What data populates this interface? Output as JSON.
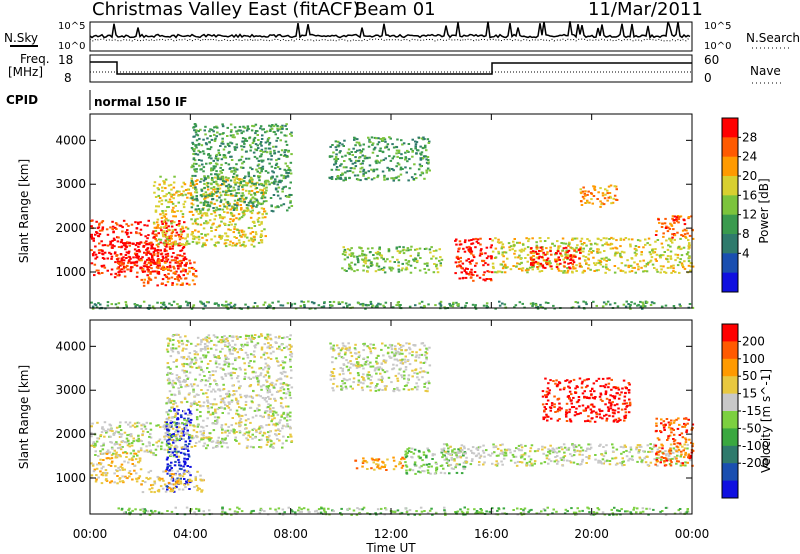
{
  "header": {
    "title": "Christmas Valley East (fitACF)",
    "beam": "Beam 01",
    "date": "11/Mar/2011"
  },
  "aux": {
    "nsky_label": "N.Sky",
    "nsearch_label": "N.Search",
    "scale_top": "10^5",
    "scale_bottom": "10^0",
    "freq_label_1": "Freq.",
    "freq_label_2": "[MHz]",
    "freq_ticks": [
      "18",
      "8"
    ],
    "nave_label": "Nave",
    "nave_ticks": [
      "60",
      "0"
    ],
    "cpid_label": "CPID",
    "cpid_value": "normal 150 IF"
  },
  "colors": {
    "power": [
      "#1010e0",
      "#1a4fb0",
      "#2f7a6c",
      "#3a9a4e",
      "#7cc43c",
      "#d8d030",
      "#ff9a00",
      "#ff5a00",
      "#ff0000"
    ],
    "velocity": [
      "#1010e0",
      "#1a4fb0",
      "#2f7a6c",
      "#3aa840",
      "#7cd040",
      "#c8c8c8",
      "#e8c840",
      "#ff9a00",
      "#ff5a00",
      "#ff0000"
    ],
    "accent_black": "#000000"
  },
  "chart_data": [
    {
      "type": "heatmap",
      "panel": "power",
      "title": "Christmas Valley East (fitACF)",
      "xlabel": "Time UT",
      "ylabel": "Slant Range [km]",
      "colorbar_label": "Power [dB]",
      "colorbar_ticks": [
        "28",
        "24",
        "20",
        "16",
        "12",
        "8",
        "4"
      ],
      "x_ticks": [
        "00:00",
        "04:00",
        "08:00",
        "12:00",
        "16:00",
        "20:00",
        "00:00"
      ],
      "y_ticks": [
        "1000",
        "2000",
        "3000",
        "4000"
      ],
      "ylim": [
        180,
        4600
      ],
      "xlim_hours": [
        0,
        24
      ],
      "regions": [
        {
          "t0": 0.0,
          "t1": 3.8,
          "r0": 900,
          "r1": 2200,
          "level": 9
        },
        {
          "t0": 1.0,
          "t1": 3.0,
          "r0": 1100,
          "r1": 1700,
          "level": 9
        },
        {
          "t0": 2.0,
          "t1": 4.2,
          "r0": 700,
          "r1": 1300,
          "level": 8
        },
        {
          "t0": 2.5,
          "t1": 7.0,
          "r0": 1600,
          "r1": 3200,
          "level": 6
        },
        {
          "t0": 4.0,
          "t1": 8.0,
          "r0": 2400,
          "r1": 4400,
          "level": 4
        },
        {
          "t0": 9.5,
          "t1": 13.5,
          "r0": 3100,
          "r1": 4100,
          "level": 4
        },
        {
          "t0": 10.0,
          "t1": 14.0,
          "r0": 1000,
          "r1": 1600,
          "level": 5
        },
        {
          "t0": 14.5,
          "t1": 16.0,
          "r0": 800,
          "r1": 1800,
          "level": 9
        },
        {
          "t0": 16.0,
          "t1": 24.0,
          "r0": 1000,
          "r1": 1800,
          "level": 6
        },
        {
          "t0": 17.5,
          "t1": 19.5,
          "r0": 1100,
          "r1": 1600,
          "level": 9
        },
        {
          "t0": 19.5,
          "t1": 21.0,
          "r0": 2500,
          "r1": 3000,
          "level": 7
        },
        {
          "t0": 22.5,
          "t1": 24.0,
          "r0": 1800,
          "r1": 2300,
          "level": 8
        },
        {
          "t0": 0.0,
          "t1": 24.0,
          "r0": 180,
          "r1": 350,
          "level": 4
        }
      ]
    },
    {
      "type": "heatmap",
      "panel": "velocity",
      "xlabel": "Time UT",
      "ylabel": "Slant Range [km]",
      "colorbar_label": "Velocity [m s^-1]",
      "colorbar_ticks": [
        "200",
        "100",
        "50",
        "15",
        "-15",
        "-50",
        "-100",
        "-200"
      ],
      "x_ticks": [
        "00:00",
        "04:00",
        "08:00",
        "12:00",
        "16:00",
        "20:00",
        "00:00"
      ],
      "y_ticks": [
        "1000",
        "2000",
        "3000",
        "4000"
      ],
      "ylim": [
        180,
        4600
      ],
      "xlim_hours": [
        0,
        24
      ],
      "regions": [
        {
          "t0": 0.0,
          "t1": 2.0,
          "r0": 900,
          "r1": 1600,
          "level": 7
        },
        {
          "t0": 0.0,
          "t1": 3.5,
          "r0": 1500,
          "r1": 2300,
          "level": 6
        },
        {
          "t0": 3.0,
          "t1": 4.0,
          "r0": 700,
          "r1": 2600,
          "level": 1
        },
        {
          "t0": 2.0,
          "t1": 4.5,
          "r0": 700,
          "r1": 1200,
          "level": 7
        },
        {
          "t0": 3.0,
          "t1": 8.0,
          "r0": 1700,
          "r1": 4300,
          "level": 6
        },
        {
          "t0": 9.5,
          "t1": 13.5,
          "r0": 3000,
          "r1": 4100,
          "level": 6
        },
        {
          "t0": 10.5,
          "t1": 12.5,
          "r0": 1200,
          "r1": 1500,
          "level": 8
        },
        {
          "t0": 12.5,
          "t1": 15.0,
          "r0": 1100,
          "r1": 1700,
          "level": 5
        },
        {
          "t0": 14.0,
          "t1": 24.0,
          "r0": 1300,
          "r1": 1800,
          "level": 6
        },
        {
          "t0": 18.0,
          "t1": 21.5,
          "r0": 2300,
          "r1": 3300,
          "level": 10
        },
        {
          "t0": 22.5,
          "t1": 24.0,
          "r0": 1300,
          "r1": 2400,
          "level": 9
        },
        {
          "t0": 1.0,
          "t1": 24.0,
          "r0": 180,
          "r1": 350,
          "level": 5
        }
      ]
    }
  ]
}
